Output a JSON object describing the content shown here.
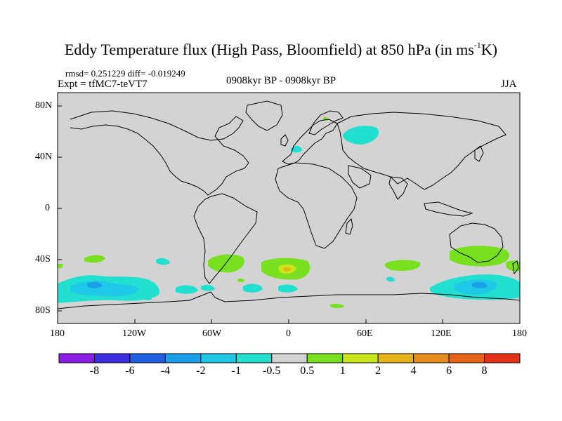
{
  "title": {
    "main": "Eddy Temperature flux (High Pass, Bloomfield) at 850 hPa (in ms",
    "sup": "-1",
    "end": "K)"
  },
  "stats": "rmsd= 0.251229 diff= -0.019249",
  "experiment": "Expt = tfMC7-teVT7",
  "period": "0908kyr BP - 0908kyr BP",
  "season": "JJA",
  "lat_ticks": [
    "80N",
    "40N",
    "0",
    "40S",
    "80S"
  ],
  "lon_ticks": [
    "180",
    "120W",
    "60W",
    "0",
    "60E",
    "120E",
    "180"
  ],
  "colorbar": {
    "labels": [
      "-8",
      "-6",
      "-4",
      "-2",
      "-1",
      "-0.5",
      "0.5",
      "1",
      "2",
      "4",
      "6",
      "8"
    ],
    "colors": [
      "#8a1ee6",
      "#3a2ee0",
      "#1f5fe0",
      "#1aa0e8",
      "#20c8e8",
      "#22e0d0",
      "#d3d3d3",
      "#78e01e",
      "#c8e61a",
      "#e6b41a",
      "#e68c1a",
      "#e6641a",
      "#e63219"
    ]
  },
  "map_background": "#d3d3d3",
  "ranges": {
    "lon": [
      -180,
      180
    ],
    "lat": [
      -90,
      90
    ]
  }
}
